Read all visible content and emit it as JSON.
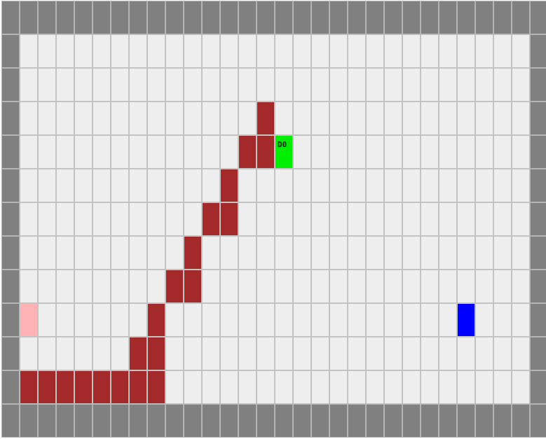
{
  "board": {
    "cols": 30,
    "rows": 13,
    "colors": {
      "wall": "#808080",
      "floor": "#eeeeee",
      "trail": "#a4292b",
      "agent": "#00ee00",
      "goal": "#0000ff",
      "start": "#ffb3b5"
    },
    "trail": [
      [
        3,
        14
      ],
      [
        4,
        13
      ],
      [
        4,
        14
      ],
      [
        5,
        12
      ],
      [
        6,
        11
      ],
      [
        6,
        12
      ],
      [
        7,
        10
      ],
      [
        8,
        9
      ],
      [
        8,
        10
      ],
      [
        9,
        8
      ],
      [
        10,
        7
      ],
      [
        10,
        8
      ],
      [
        11,
        1
      ],
      [
        11,
        2
      ],
      [
        11,
        3
      ],
      [
        11,
        4
      ],
      [
        11,
        5
      ],
      [
        11,
        6
      ],
      [
        11,
        7
      ],
      [
        11,
        8
      ]
    ],
    "agent": {
      "row": 4,
      "col": 15,
      "label": "D0"
    },
    "goal": {
      "row": 9,
      "col": 25
    },
    "start": {
      "row": 9,
      "col": 1
    }
  }
}
